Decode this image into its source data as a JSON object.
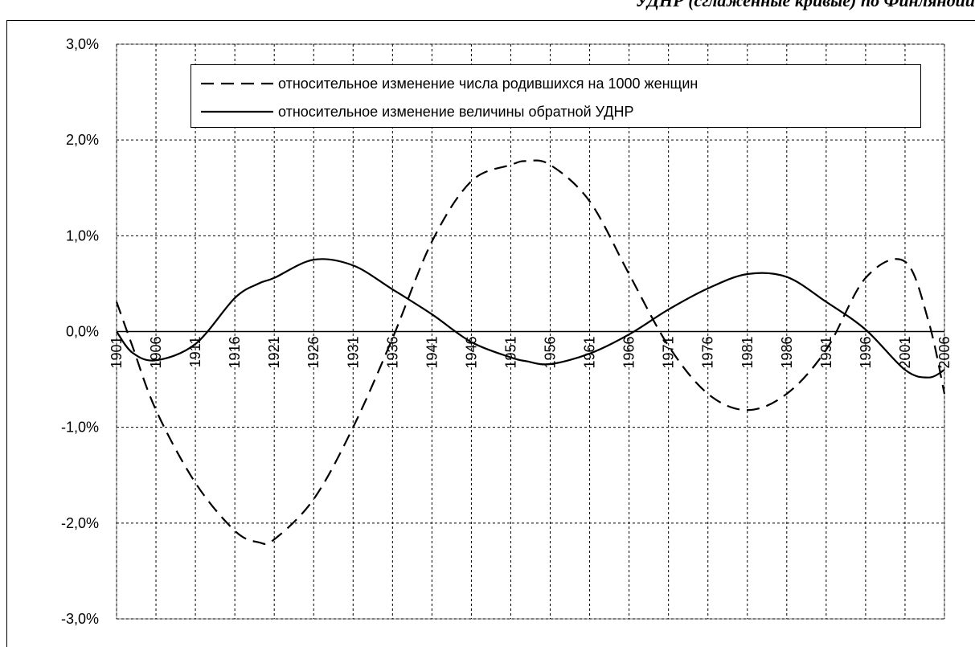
{
  "chart_data": {
    "type": "line",
    "title": "УДНР (сглаженные кривые) по Финляндии",
    "x": [
      1901,
      1903,
      1906,
      1911,
      1916,
      1919,
      1921,
      1926,
      1931,
      1936,
      1941,
      1946,
      1951,
      1953,
      1956,
      1961,
      1966,
      1971,
      1976,
      1981,
      1986,
      1991,
      1996,
      2001,
      2004,
      2006
    ],
    "series": [
      {
        "name": "относительное изменение числа родившихся на 1000 женщин",
        "color": "#000000",
        "dash": true,
        "values": [
          0.31,
          -0.15,
          -0.82,
          -1.58,
          -2.08,
          -2.2,
          -2.17,
          -1.75,
          -1.0,
          -0.07,
          0.94,
          1.57,
          1.74,
          1.78,
          1.74,
          1.36,
          0.6,
          -0.15,
          -0.65,
          -0.82,
          -0.65,
          -0.19,
          0.56,
          0.73,
          0.1,
          -0.65
        ]
      },
      {
        "name": "относительное изменение  величины обратной УДНР",
        "color": "#000000",
        "dash": false,
        "values": [
          0.0,
          -0.22,
          -0.3,
          -0.13,
          0.35,
          0.5,
          0.56,
          0.75,
          0.69,
          0.44,
          0.18,
          -0.11,
          -0.27,
          -0.31,
          -0.34,
          -0.23,
          -0.03,
          0.23,
          0.45,
          0.6,
          0.57,
          0.31,
          0.02,
          -0.4,
          -0.48,
          -0.4
        ]
      }
    ],
    "xlim": [
      1901,
      2006
    ],
    "xticks": [
      1901,
      1906,
      1911,
      1916,
      1921,
      1926,
      1931,
      1936,
      1941,
      1946,
      1951,
      1956,
      1961,
      1966,
      1971,
      1976,
      1981,
      1986,
      1991,
      1996,
      2001,
      2006
    ],
    "ylim": [
      -3,
      3
    ],
    "yticks": [
      {
        "value": -3,
        "label": "-3,0%"
      },
      {
        "value": -2,
        "label": "-2,0%"
      },
      {
        "value": -1,
        "label": "-1,0%"
      },
      {
        "value": 0,
        "label": "0,0%"
      },
      {
        "value": 1,
        "label": "1,0%"
      },
      {
        "value": 2,
        "label": "2,0%"
      },
      {
        "value": 3,
        "label": "3,0%"
      }
    ],
    "grid": true
  }
}
